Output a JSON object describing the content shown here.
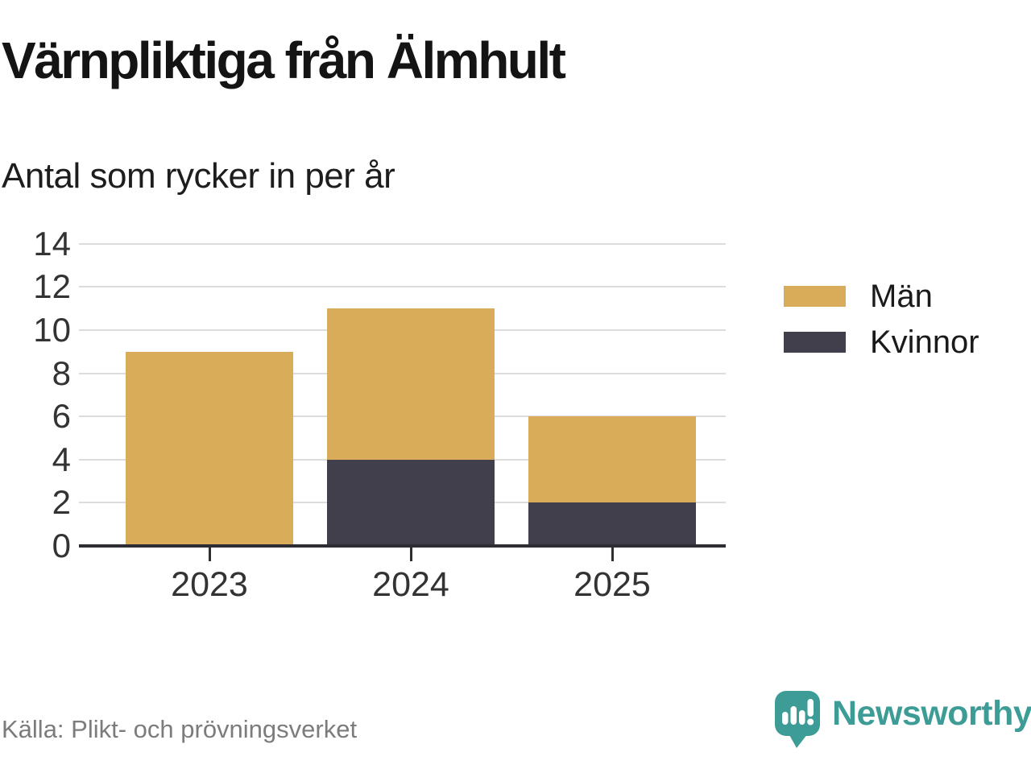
{
  "chart_data": {
    "type": "bar",
    "stacked": true,
    "title": "Värnpliktiga från Älmhult",
    "subtitle": "Antal som rycker in per år",
    "categories": [
      "2023",
      "2024",
      "2025"
    ],
    "series": [
      {
        "name": "Män",
        "color": "#d9ac59",
        "values": [
          9,
          7,
          4
        ]
      },
      {
        "name": "Kvinnor",
        "color": "#413f4c",
        "values": [
          0,
          4,
          2
        ]
      }
    ],
    "stack_bottom_to_top": [
      "Kvinnor",
      "Män"
    ],
    "stack_totals": [
      9,
      11,
      6
    ],
    "ylim": [
      0,
      14
    ],
    "yticks": [
      0,
      2,
      4,
      6,
      8,
      10,
      12,
      14
    ],
    "grid": "horizontal gridlines on",
    "legend_position": "right"
  },
  "footer": {
    "source_label": "Källa: Plikt- och prövningsverket",
    "brand_name": "Newsworthy",
    "brand_icon": "speech-bubble-with-bar-chart-and-exclamation"
  },
  "colors": {
    "bar_men": "#d9ac59",
    "bar_women": "#413f4c",
    "brand_teal": "#3d9c95",
    "gridline": "#dcdcdc",
    "axis": "#2e2d33",
    "title_text": "#141414",
    "axis_label_text": "#333333",
    "source_text": "#7c7c7c",
    "background": "#ffffff"
  }
}
